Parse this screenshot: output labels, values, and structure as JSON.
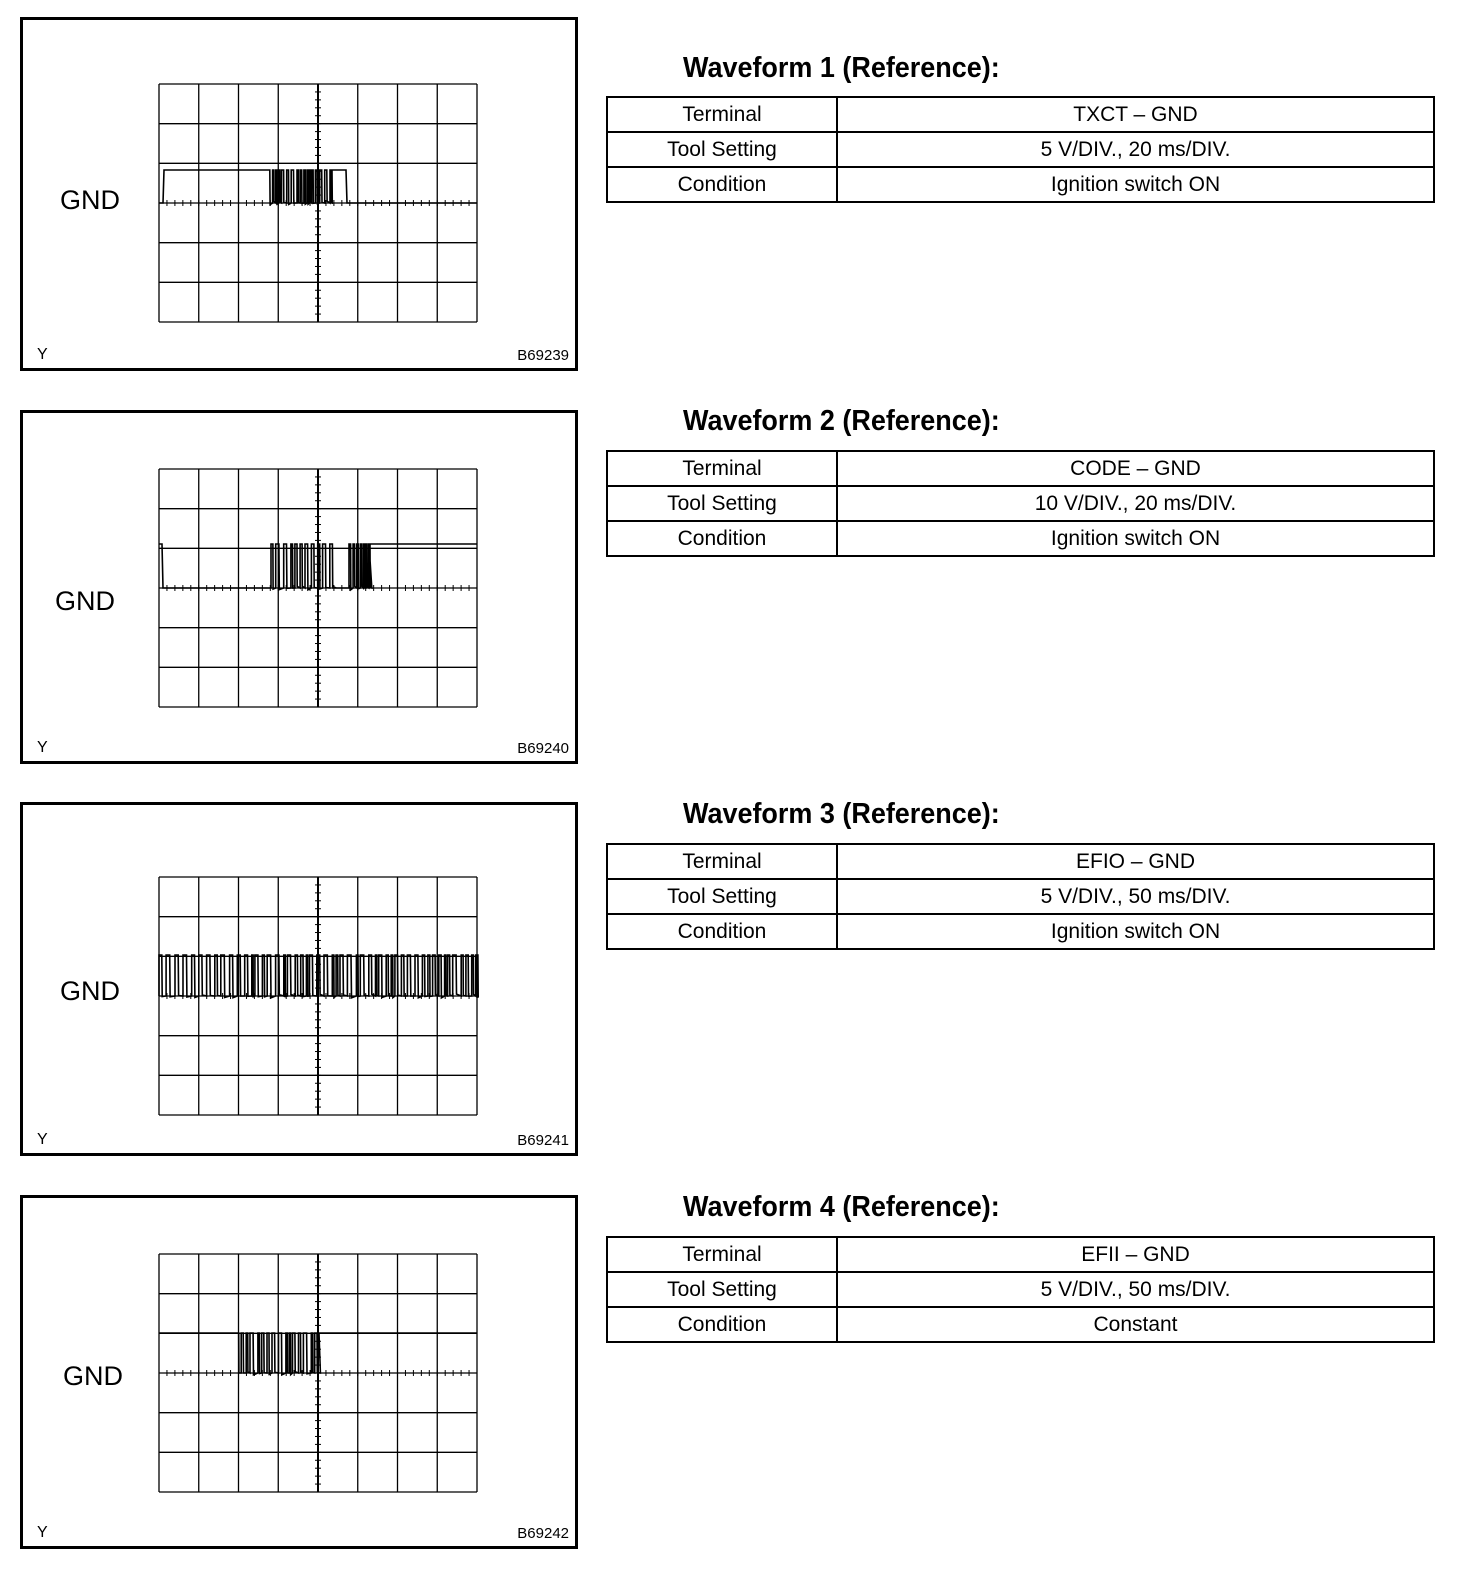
{
  "waveforms": [
    {
      "title": "Waveform 1 (Reference):",
      "gnd_label": "GND",
      "y_mark": "Y",
      "figure_code": "B69239",
      "rows": [
        {
          "key": "Terminal",
          "value": "TXCT – GND"
        },
        {
          "key": "Tool Setting",
          "value": "5 V/DIV., 20 ms/DIV."
        },
        {
          "key": "Condition",
          "value": "Ignition switch ON"
        }
      ]
    },
    {
      "title": "Waveform 2 (Reference):",
      "gnd_label": "GND",
      "y_mark": "Y",
      "figure_code": "B69240",
      "rows": [
        {
          "key": "Terminal",
          "value": "CODE – GND"
        },
        {
          "key": "Tool Setting",
          "value": "10 V/DIV., 20 ms/DIV."
        },
        {
          "key": "Condition",
          "value": "Ignition switch ON"
        }
      ]
    },
    {
      "title": "Waveform 3 (Reference):",
      "gnd_label": "GND",
      "y_mark": "Y",
      "figure_code": "B69241",
      "rows": [
        {
          "key": "Terminal",
          "value": "EFIO – GND"
        },
        {
          "key": "Tool Setting",
          "value": "5 V/DIV., 50 ms/DIV."
        },
        {
          "key": "Condition",
          "value": "Ignition switch ON"
        }
      ]
    },
    {
      "title": "Waveform 4 (Reference):",
      "gnd_label": "GND",
      "y_mark": "Y",
      "figure_code": "B69242",
      "rows": [
        {
          "key": "Terminal",
          "value": "EFII – GND"
        },
        {
          "key": "Tool Setting",
          "value": "5 V/DIV., 50 ms/DIV."
        },
        {
          "key": "Condition",
          "value": "Constant"
        }
      ]
    }
  ]
}
